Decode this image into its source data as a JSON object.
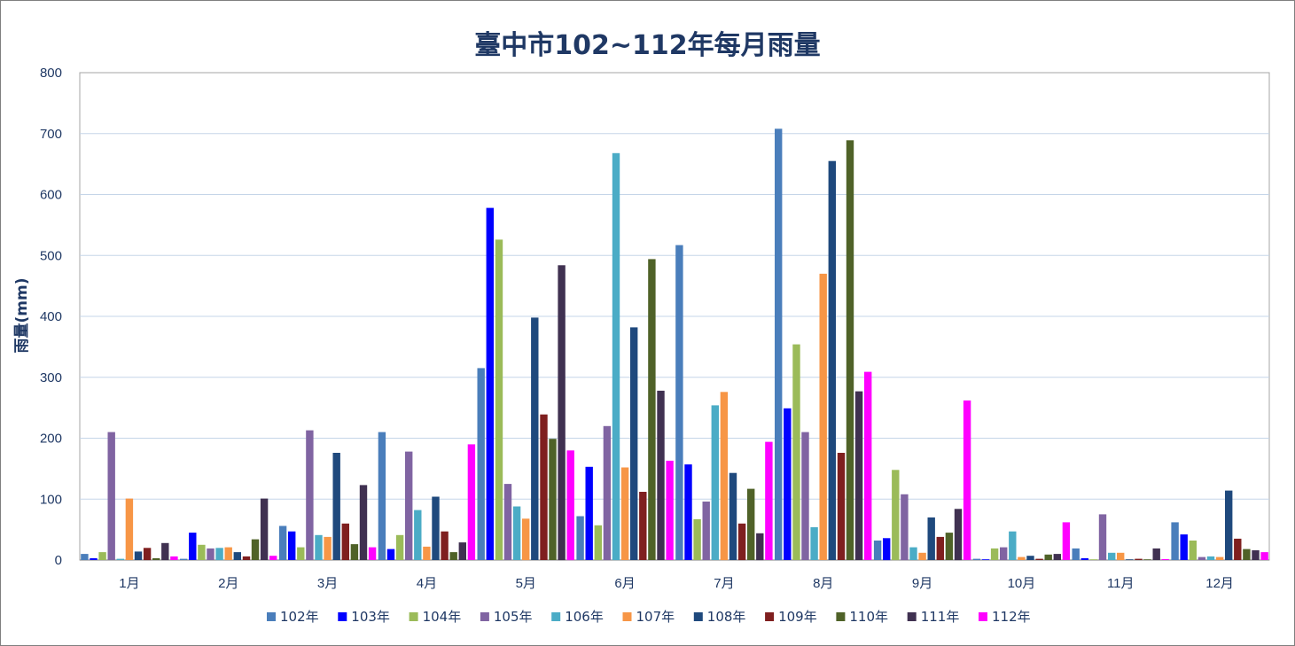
{
  "chart_data": {
    "type": "bar",
    "title": "臺中市102~112年每月雨量",
    "xlabel": "",
    "ylabel": "雨量(mm)",
    "ylim": [
      0,
      800
    ],
    "yticks": [
      0,
      100,
      200,
      300,
      400,
      500,
      600,
      700,
      800
    ],
    "grid": true,
    "legend_position": "bottom",
    "categories": [
      "1月",
      "2月",
      "3月",
      "4月",
      "5月",
      "6月",
      "7月",
      "8月",
      "9月",
      "10月",
      "11月",
      "12月"
    ],
    "series": [
      {
        "name": "102年",
        "color": "#4a7ebb",
        "values": [
          10,
          2,
          56,
          210,
          315,
          72,
          517,
          708,
          32,
          2,
          19,
          62
        ]
      },
      {
        "name": "103年",
        "color": "#0000ff",
        "values": [
          3,
          45,
          47,
          18,
          578,
          153,
          157,
          249,
          36,
          0,
          3,
          42
        ]
      },
      {
        "name": "104年",
        "color": "#9bbb59",
        "values": [
          13,
          25,
          21,
          41,
          526,
          57,
          67,
          354,
          148,
          19,
          0,
          32
        ]
      },
      {
        "name": "105年",
        "color": "#8064a2",
        "values": [
          210,
          19,
          213,
          178,
          125,
          220,
          96,
          210,
          108,
          21,
          75,
          5
        ]
      },
      {
        "name": "106年",
        "color": "#4bacc6",
        "values": [
          2,
          20,
          41,
          82,
          88,
          668,
          254,
          54,
          21,
          47,
          12,
          6
        ]
      },
      {
        "name": "107年",
        "color": "#f79646",
        "values": [
          101,
          21,
          38,
          22,
          68,
          152,
          276,
          470,
          12,
          5,
          12,
          5
        ]
      },
      {
        "name": "108年",
        "color": "#1f497d",
        "values": [
          14,
          13,
          176,
          104,
          398,
          382,
          143,
          655,
          70,
          7,
          0,
          114
        ]
      },
      {
        "name": "109年",
        "color": "#7f1f1f",
        "values": [
          20,
          6,
          60,
          47,
          239,
          112,
          60,
          176,
          38,
          2,
          2,
          35
        ]
      },
      {
        "name": "110年",
        "color": "#4f6228",
        "values": [
          3,
          34,
          26,
          13,
          199,
          494,
          117,
          689,
          45,
          9,
          0,
          18
        ]
      },
      {
        "name": "111年",
        "color": "#403151",
        "values": [
          28,
          101,
          123,
          29,
          484,
          278,
          44,
          277,
          84,
          10,
          19,
          16
        ]
      },
      {
        "name": "112年",
        "color": "#ff00ff",
        "values": [
          6,
          7,
          21,
          190,
          180,
          163,
          194,
          309,
          262,
          62,
          1,
          13
        ]
      }
    ]
  }
}
